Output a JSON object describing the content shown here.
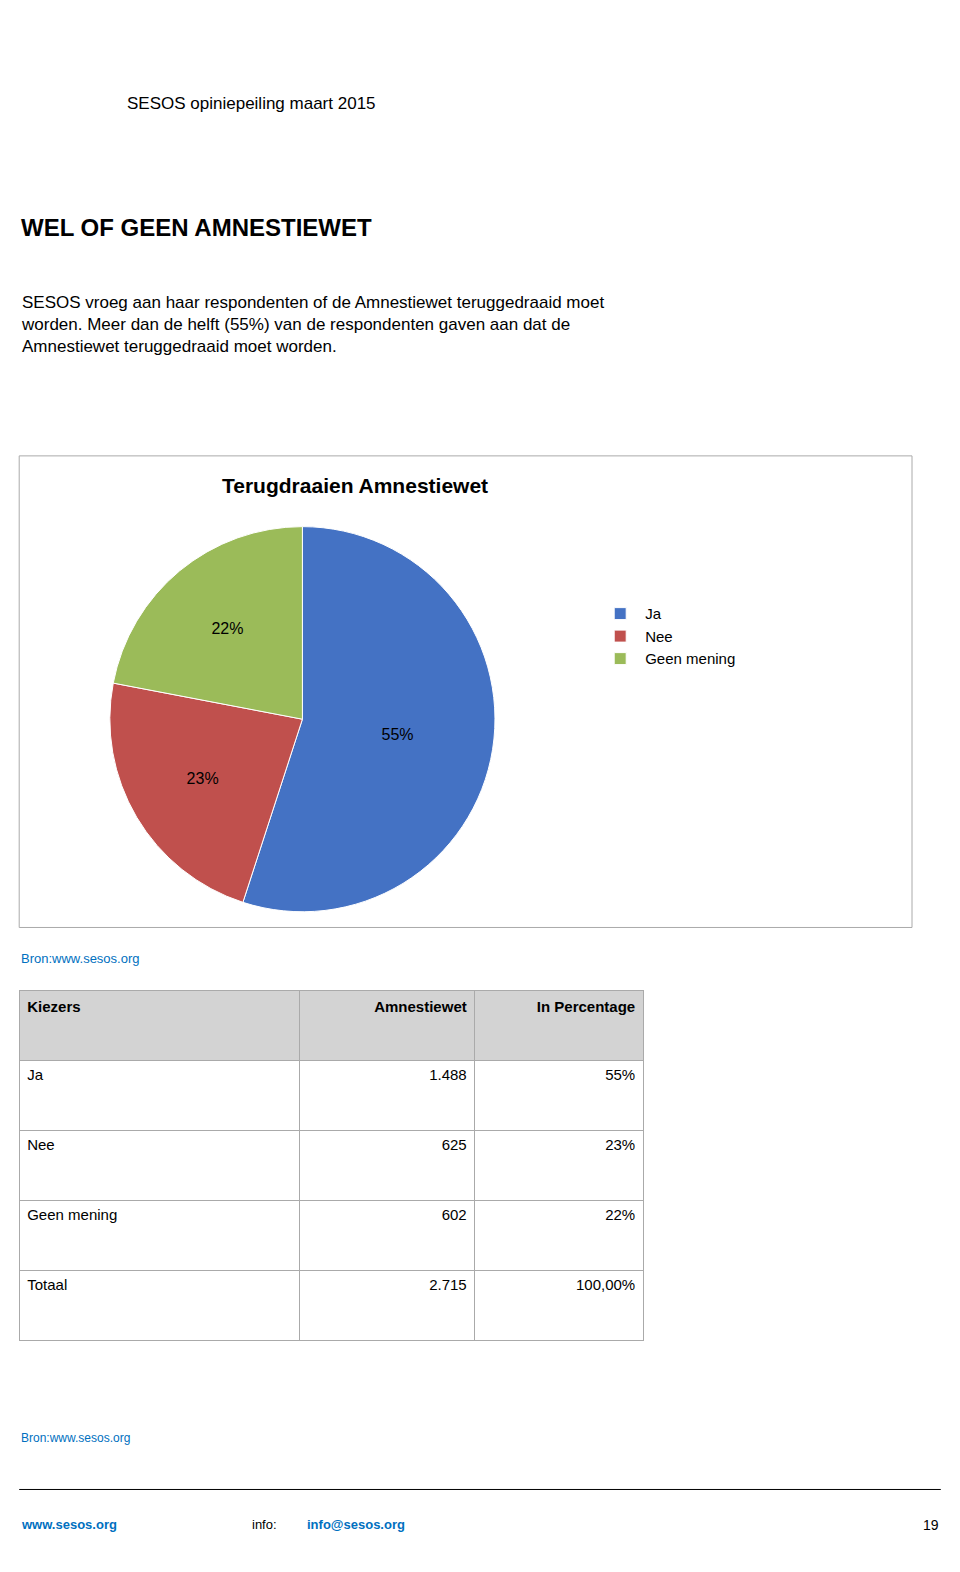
{
  "page_header": "SESOS opiniepeiling maart 2015",
  "page_title": "WEL OF GEEN AMNESTIEWET",
  "paragraph": [
    "SESOS vroeg aan haar respondenten of de Amnestiewet teruggedraaid moet",
    "worden. Meer dan de helft (55%) van de respondenten gaven aan dat de",
    "Amnestiewet teruggedraaid moet worden."
  ],
  "chart_data": [
    {
      "type": "pie",
      "title": "Terugdraaien Amnestiewet",
      "categories": [
        "Ja",
        "Nee",
        "Geen mening"
      ],
      "values": [
        55,
        23,
        22
      ],
      "value_labels": [
        "55%",
        "23%",
        "22%"
      ],
      "colors": [
        "#4472C4",
        "#C0504D",
        "#9BBB59"
      ],
      "data_labels": true,
      "legend": "right"
    },
    {
      "type": "table",
      "headers": [
        "Kiezers",
        "Amnestiewet",
        "In Percentage"
      ],
      "rows": [
        [
          "Ja",
          "1.488",
          "55%"
        ],
        [
          "Nee",
          "625",
          "23%"
        ],
        [
          "Geen mening",
          "602",
          "22%"
        ],
        [
          "Totaal",
          "2.715",
          "100,00%"
        ]
      ]
    }
  ],
  "chart_source": "Bron:www.sesos.org",
  "table_source": "Bron:www.sesos.org",
  "link_color": "#0070C0",
  "footer": {
    "left": "www.sesos.org",
    "info_label": "info: ",
    "info_link": "info@sesos.org",
    "page": "19"
  }
}
